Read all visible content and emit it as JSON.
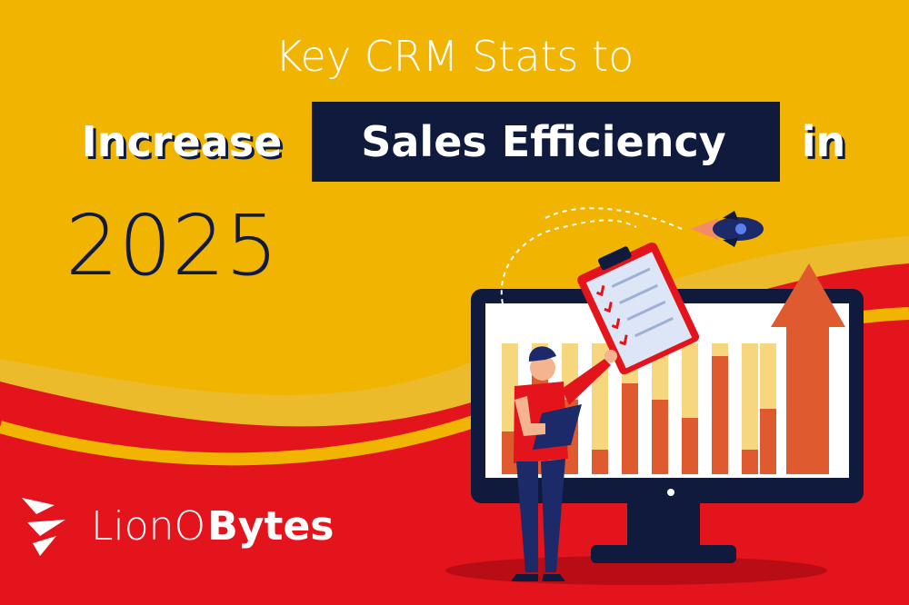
{
  "title": {
    "line1": "Key CRM Stats to",
    "before": "Increase",
    "highlight": "Sales Efficiency",
    "after": "in",
    "year": "2025"
  },
  "logo": {
    "light": "LionO",
    "bold": "Bytes"
  }
}
